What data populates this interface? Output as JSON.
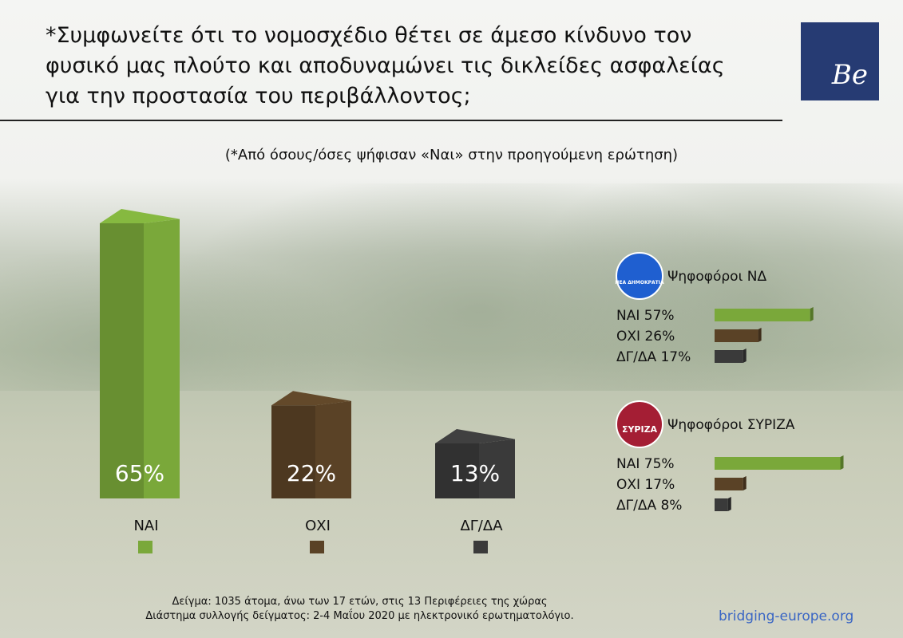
{
  "title": "*Συμφωνείτε ότι το νομοσχέδιο θέτει σε άμεσο κίνδυνο τον φυσικό μας πλούτο και αποδυναμώνει τις δικλείδες ασφαλείας για την προστασία του περιβάλλοντος;",
  "logo_text": "Be",
  "subtitle": "(*Από όσους/όσες ψήφισαν «Ναι» στην προηγούμενη ερώτηση)",
  "chart_data": [
    {
      "type": "bar",
      "title": "",
      "categories": [
        "ΝΑΙ",
        "ΟΧΙ",
        "ΔΓ/ΔΑ"
      ],
      "values": [
        65,
        22,
        13
      ],
      "data_labels": [
        "65%",
        "22%",
        "13%"
      ],
      "colors": [
        "#7aa83a",
        "#5a4226",
        "#3a3a3a"
      ],
      "ylim": [
        0,
        65
      ]
    },
    {
      "type": "bar",
      "orientation": "horizontal",
      "title": "Ψηφοφόροι ΝΔ",
      "logo_text": "ΝΕΑ ΔΗΜΟΚΡΑΤΙΑ",
      "categories": [
        "ΝΑΙ",
        "ΟΧΙ",
        "ΔΓ/ΔΑ"
      ],
      "values": [
        57,
        26,
        17
      ],
      "labels": [
        "ΝΑΙ 57%",
        "ΟΧΙ 26%",
        "ΔΓ/ΔΑ 17%"
      ],
      "colors": [
        "#7aa83a",
        "#5a4226",
        "#3a3a3a"
      ]
    },
    {
      "type": "bar",
      "orientation": "horizontal",
      "title": "Ψηφοφόροι ΣΥΡΙΖΑ",
      "logo_text": "ΣΥΡΙΖΑ",
      "categories": [
        "ΝΑΙ",
        "ΟΧΙ",
        "ΔΓ/ΔΑ"
      ],
      "values": [
        75,
        17,
        8
      ],
      "labels": [
        "ΝΑΙ 75%",
        "ΟΧΙ 17%",
        "ΔΓ/ΔΑ 8%"
      ],
      "colors": [
        "#7aa83a",
        "#5a4226",
        "#3a3a3a"
      ]
    }
  ],
  "footer": {
    "line1": "Δείγμα: 1035 άτομα, άνω των 17 ετών, στις 13 Περιφέρειες της χώρας",
    "line2": "Διάστημα συλλογής δείγματος: 2-4 Μαΐου 2020 με ηλεκτρονικό ερωτηματολόγιο.",
    "url": "bridging-europe.org"
  }
}
